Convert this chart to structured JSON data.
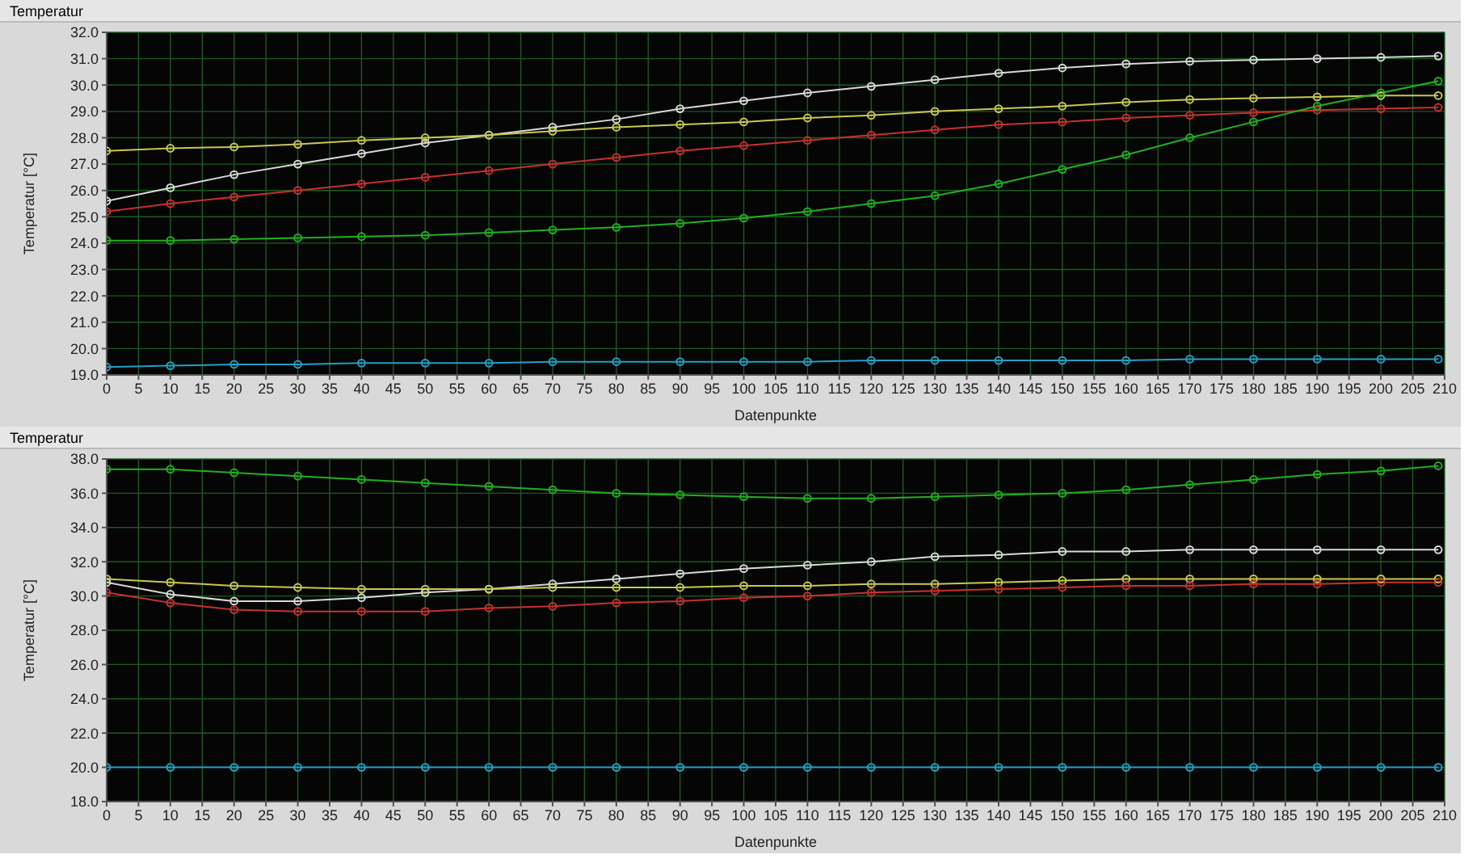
{
  "chart_data": [
    {
      "type": "line",
      "title": "Temperatur",
      "xlabel": "Datenpunkte",
      "ylabel": "Temperatur  [°C]",
      "marker": "circle",
      "grid": true,
      "legend": false,
      "x": [
        0,
        10,
        20,
        30,
        40,
        50,
        60,
        70,
        80,
        90,
        100,
        110,
        120,
        130,
        140,
        150,
        160,
        170,
        180,
        190,
        200,
        209
      ],
      "xlim": [
        0,
        210
      ],
      "xticks": [
        0,
        5,
        10,
        15,
        20,
        25,
        30,
        35,
        40,
        45,
        50,
        55,
        60,
        65,
        70,
        75,
        80,
        85,
        90,
        95,
        100,
        105,
        110,
        115,
        120,
        125,
        130,
        135,
        140,
        145,
        150,
        155,
        160,
        165,
        170,
        175,
        180,
        185,
        190,
        195,
        200,
        205,
        210
      ],
      "ylim": [
        19,
        32
      ],
      "yticks": [
        {
          "value": 19,
          "label": "19.0"
        },
        {
          "value": 20,
          "label": "20.0"
        },
        {
          "value": 21,
          "label": "21.0"
        },
        {
          "value": 22,
          "label": "22.0"
        },
        {
          "value": 23,
          "label": "23.0"
        },
        {
          "value": 24,
          "label": "24.0"
        },
        {
          "value": 25,
          "label": "25.0"
        },
        {
          "value": 26,
          "label": "26.0"
        },
        {
          "value": 27,
          "label": "27.0"
        },
        {
          "value": 28,
          "label": "28.0"
        },
        {
          "value": 29,
          "label": "29.0"
        },
        {
          "value": 30,
          "label": "30.0"
        },
        {
          "value": 31,
          "label": "31.0"
        },
        {
          "value": 32,
          "label": "32.0"
        }
      ],
      "series": [
        {
          "color": "#d8d8d8",
          "values": [
            25.6,
            26.1,
            26.6,
            27.0,
            27.4,
            27.8,
            28.1,
            28.4,
            28.7,
            29.1,
            29.4,
            29.7,
            29.95,
            30.2,
            30.45,
            30.65,
            30.8,
            30.9,
            30.95,
            31.0,
            31.05,
            31.1
          ]
        },
        {
          "color": "#c8c850",
          "values": [
            27.5,
            27.6,
            27.65,
            27.75,
            27.9,
            28.0,
            28.1,
            28.25,
            28.4,
            28.5,
            28.6,
            28.75,
            28.85,
            29.0,
            29.1,
            29.2,
            29.35,
            29.45,
            29.5,
            29.55,
            29.6,
            29.6
          ]
        },
        {
          "color": "#c83030",
          "values": [
            25.2,
            25.5,
            25.75,
            26.0,
            26.25,
            26.5,
            26.75,
            27.0,
            27.25,
            27.5,
            27.7,
            27.9,
            28.1,
            28.3,
            28.5,
            28.6,
            28.75,
            28.85,
            28.95,
            29.05,
            29.1,
            29.15
          ]
        },
        {
          "color": "#20b020",
          "values": [
            24.1,
            24.1,
            24.15,
            24.2,
            24.25,
            24.3,
            24.4,
            24.5,
            24.6,
            24.75,
            24.95,
            25.2,
            25.5,
            25.8,
            26.25,
            26.8,
            27.35,
            28.0,
            28.6,
            29.2,
            29.7,
            30.15
          ]
        },
        {
          "color": "#20a0c8",
          "values": [
            19.3,
            19.35,
            19.4,
            19.4,
            19.45,
            19.45,
            19.45,
            19.5,
            19.5,
            19.5,
            19.5,
            19.5,
            19.55,
            19.55,
            19.55,
            19.55,
            19.55,
            19.6,
            19.6,
            19.6,
            19.6,
            19.6
          ]
        }
      ]
    },
    {
      "type": "line",
      "title": "Temperatur",
      "xlabel": "Datenpunkte",
      "ylabel": "Temperatur  [°C]",
      "marker": "circle",
      "grid": true,
      "legend": false,
      "x": [
        0,
        10,
        20,
        30,
        40,
        50,
        60,
        70,
        80,
        90,
        100,
        110,
        120,
        130,
        140,
        150,
        160,
        170,
        180,
        190,
        200,
        209
      ],
      "xlim": [
        0,
        210
      ],
      "xticks": [
        0,
        5,
        10,
        15,
        20,
        25,
        30,
        35,
        40,
        45,
        50,
        55,
        60,
        65,
        70,
        75,
        80,
        85,
        90,
        95,
        100,
        105,
        110,
        115,
        120,
        125,
        130,
        135,
        140,
        145,
        150,
        155,
        160,
        165,
        170,
        175,
        180,
        185,
        190,
        195,
        200,
        205,
        210
      ],
      "ylim": [
        18,
        38
      ],
      "yticks": [
        {
          "value": 18,
          "label": "18.0"
        },
        {
          "value": 20,
          "label": "20.0"
        },
        {
          "value": 22,
          "label": "22.0"
        },
        {
          "value": 24,
          "label": "24.0"
        },
        {
          "value": 26,
          "label": "26.0"
        },
        {
          "value": 28,
          "label": "28.0"
        },
        {
          "value": 30,
          "label": "30.0"
        },
        {
          "value": 32,
          "label": "32.0"
        },
        {
          "value": 34,
          "label": "34.0"
        },
        {
          "value": 36,
          "label": "36.0"
        },
        {
          "value": 38,
          "label": "38.0"
        }
      ],
      "series": [
        {
          "color": "#20b020",
          "values": [
            37.4,
            37.4,
            37.2,
            37.0,
            36.8,
            36.6,
            36.4,
            36.2,
            36.0,
            35.9,
            35.8,
            35.7,
            35.7,
            35.8,
            35.9,
            36.0,
            36.2,
            36.5,
            36.8,
            37.1,
            37.3,
            37.6
          ]
        },
        {
          "color": "#d8d8d8",
          "values": [
            30.8,
            30.1,
            29.7,
            29.7,
            29.9,
            30.2,
            30.4,
            30.7,
            31.0,
            31.3,
            31.6,
            31.8,
            32.0,
            32.3,
            32.4,
            32.6,
            32.6,
            32.7,
            32.7,
            32.7,
            32.7,
            32.7
          ]
        },
        {
          "color": "#c8c850",
          "values": [
            31.0,
            30.8,
            30.6,
            30.5,
            30.4,
            30.4,
            30.4,
            30.5,
            30.5,
            30.5,
            30.6,
            30.6,
            30.7,
            30.7,
            30.8,
            30.9,
            31.0,
            31.0,
            31.0,
            31.0,
            31.0,
            31.0
          ]
        },
        {
          "color": "#c83030",
          "values": [
            30.2,
            29.6,
            29.2,
            29.1,
            29.1,
            29.1,
            29.3,
            29.4,
            29.6,
            29.7,
            29.9,
            30.0,
            30.2,
            30.3,
            30.4,
            30.5,
            30.6,
            30.6,
            30.7,
            30.7,
            30.8,
            30.8
          ]
        },
        {
          "color": "#20a0c8",
          "values": [
            20.0,
            20.0,
            20.0,
            20.0,
            20.0,
            20.0,
            20.0,
            20.0,
            20.0,
            20.0,
            20.0,
            20.0,
            20.0,
            20.0,
            20.0,
            20.0,
            20.0,
            20.0,
            20.0,
            20.0,
            20.0,
            20.0
          ]
        }
      ]
    }
  ]
}
